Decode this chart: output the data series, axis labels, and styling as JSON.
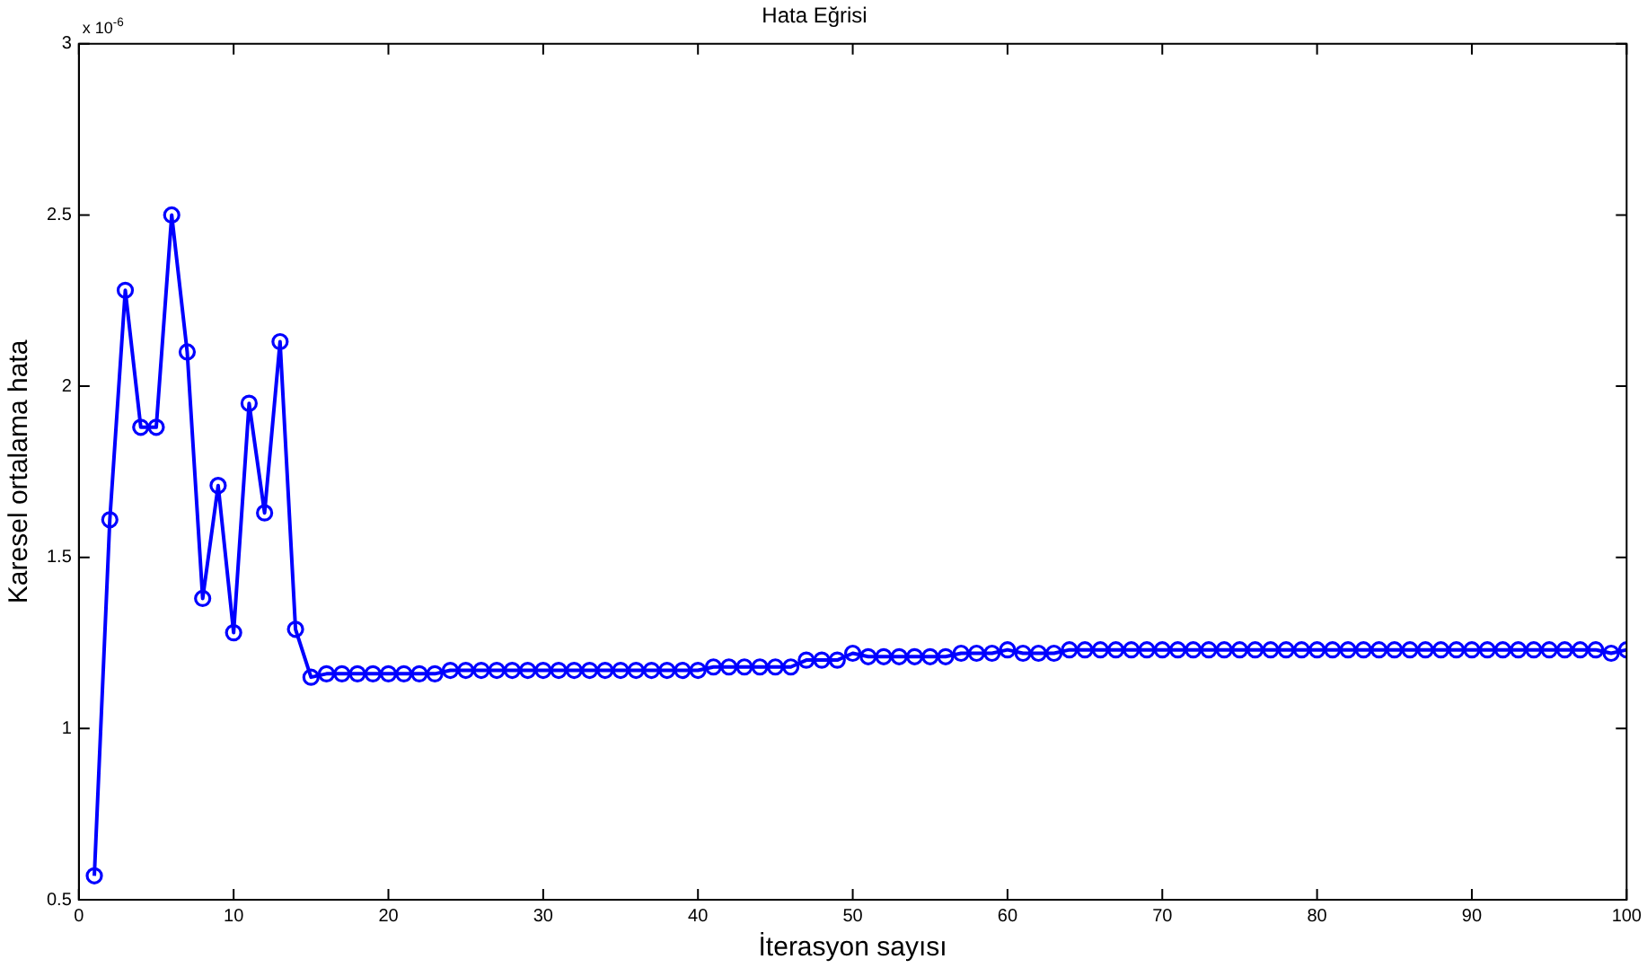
{
  "chart_data": {
    "type": "line",
    "title": "Hata Eğrisi",
    "xlabel": "İterasyon sayısı",
    "ylabel": "Karesel ortalama hata",
    "annotations": [
      "x 10$^{-6}$"
    ],
    "x": [
      1,
      2,
      3,
      4,
      5,
      6,
      7,
      8,
      9,
      10,
      11,
      12,
      13,
      14,
      15,
      16,
      17,
      18,
      19,
      20,
      21,
      22,
      23,
      24,
      25,
      26,
      27,
      28,
      29,
      30,
      31,
      32,
      33,
      34,
      35,
      36,
      37,
      38,
      39,
      40,
      41,
      42,
      43,
      44,
      45,
      46,
      47,
      48,
      49,
      50,
      51,
      52,
      53,
      54,
      55,
      56,
      57,
      58,
      59,
      60,
      61,
      62,
      63,
      64,
      65,
      66,
      67,
      68,
      69,
      70,
      71,
      72,
      73,
      74,
      75,
      76,
      77,
      78,
      79,
      80,
      81,
      82,
      83,
      84,
      85,
      86,
      87,
      88,
      89,
      90,
      91,
      92,
      93,
      94,
      95,
      96,
      97,
      98,
      99,
      100
    ],
    "series": [
      {
        "color": "#0000ff",
        "values": [
          0.57,
          1.61,
          2.28,
          1.88,
          1.88,
          2.5,
          2.1,
          1.38,
          1.71,
          1.28,
          1.95,
          1.63,
          2.13,
          1.29,
          1.15,
          1.16,
          1.16,
          1.16,
          1.16,
          1.16,
          1.16,
          1.16,
          1.16,
          1.17,
          1.17,
          1.17,
          1.17,
          1.17,
          1.17,
          1.17,
          1.17,
          1.17,
          1.17,
          1.17,
          1.17,
          1.17,
          1.17,
          1.17,
          1.17,
          1.17,
          1.18,
          1.18,
          1.18,
          1.18,
          1.18,
          1.18,
          1.2,
          1.2,
          1.2,
          1.22,
          1.21,
          1.21,
          1.21,
          1.21,
          1.21,
          1.21,
          1.22,
          1.22,
          1.22,
          1.23,
          1.22,
          1.22,
          1.22,
          1.23,
          1.23,
          1.23,
          1.23,
          1.23,
          1.23,
          1.23,
          1.23,
          1.23,
          1.23,
          1.23,
          1.23,
          1.23,
          1.23,
          1.23,
          1.23,
          1.23,
          1.23,
          1.23,
          1.23,
          1.23,
          1.23,
          1.23,
          1.23,
          1.23,
          1.23,
          1.23,
          1.23,
          1.23,
          1.23,
          1.23,
          1.23,
          1.23,
          1.23,
          1.23,
          1.22,
          1.23
        ]
      }
    ],
    "xlim": [
      0,
      100
    ],
    "xticks": [
      0,
      10,
      20,
      30,
      40,
      50,
      60,
      70,
      80,
      90,
      100
    ],
    "ylim": [
      0.5,
      3
    ],
    "yticks": [
      0.5,
      1,
      1.5,
      2,
      2.5,
      3
    ],
    "marker": "circle",
    "line_style": "solid",
    "grid": false,
    "legend": false
  }
}
